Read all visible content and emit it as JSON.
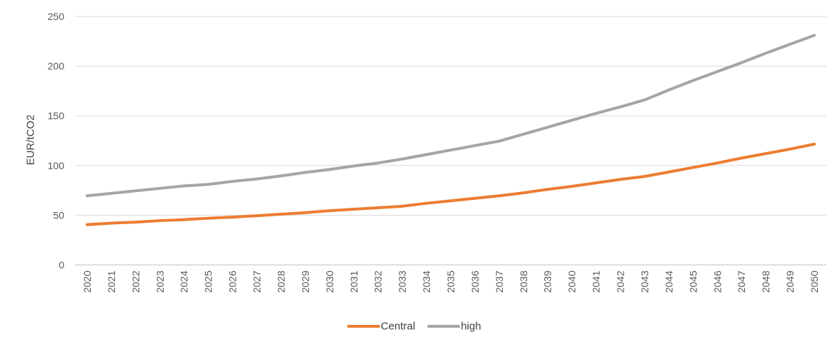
{
  "chart_data": {
    "type": "line",
    "title": "",
    "xlabel": "",
    "ylabel": "EUR/tCO2",
    "ylim": [
      0,
      250
    ],
    "yticks": [
      0,
      50,
      100,
      150,
      200,
      250
    ],
    "grid": "horizontal",
    "legend_position": "bottom",
    "x": [
      "2020",
      "2021",
      "2022",
      "2023",
      "2024",
      "2025",
      "2026",
      "2027",
      "2028",
      "2029",
      "2030",
      "2031",
      "2032",
      "2033",
      "2034",
      "2035",
      "2036",
      "2037",
      "2038",
      "2039",
      "2040",
      "2041",
      "2042",
      "2043",
      "2044",
      "2045",
      "2046",
      "2047",
      "2048",
      "2049",
      "2050"
    ],
    "series": [
      {
        "name": "Central",
        "color": "#ED7D31",
        "values": [
          40.5,
          42,
          43,
          44.5,
          45.5,
          47,
          48,
          49.5,
          51,
          52.5,
          54.5,
          56,
          57.5,
          59,
          62,
          64.5,
          67,
          69.5,
          72.5,
          76,
          79,
          82.5,
          86,
          89,
          93.5,
          98,
          102.5,
          107.5,
          112,
          116.5,
          121.5
        ]
      },
      {
        "name": "high",
        "color": "#A5A5A5",
        "values": [
          69.5,
          72,
          74.5,
          77,
          79.5,
          81,
          84,
          86.5,
          89.5,
          93,
          96,
          99.5,
          102.5,
          106.5,
          111,
          115.5,
          120,
          124.5,
          131.5,
          138.5,
          145.5,
          152.5,
          159,
          166,
          176,
          185.5,
          194.5,
          203.5,
          213,
          222,
          231
        ]
      }
    ]
  }
}
